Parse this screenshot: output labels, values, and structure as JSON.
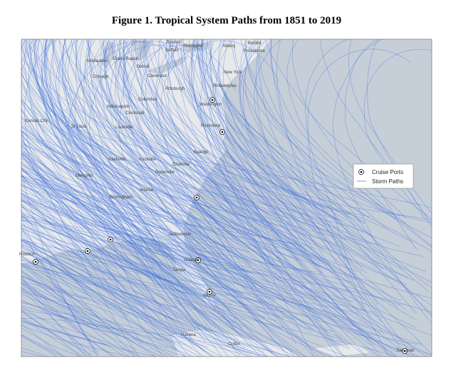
{
  "title": "Figure 1. Tropical System Paths from 1851 to 2019",
  "cities": [
    "Toronto",
    "Rochester",
    "Buffalo",
    "Albany",
    "Boston",
    "Providence",
    "Milwaukee",
    "Grand Rapids",
    "Detroit",
    "Chicago",
    "Cleveland",
    "New York",
    "Philadelphia",
    "Pittsburgh",
    "Columbus",
    "Indianapolis",
    "Washington",
    "Cincinnati",
    "Kansas City",
    "St Louis",
    "Louisville",
    "Richmond",
    "Nashville",
    "Knoxville",
    "Raleigh",
    "Charlotte",
    "Memphis",
    "Greenville",
    "Atlanta",
    "Birmingham",
    "Jacksonville",
    "Houston",
    "Orlando",
    "Tampa",
    "Miami",
    "Havana",
    "CUBA",
    "San Juan"
  ],
  "legend": [
    "Cruise Ports",
    "Storm Paths"
  ]
}
